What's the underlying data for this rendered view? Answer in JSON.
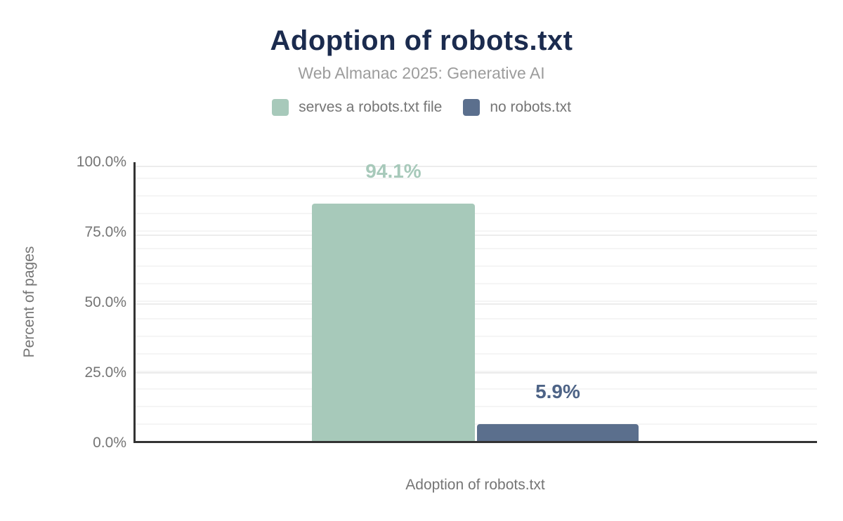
{
  "figure": {
    "title": "Adoption of robots.txt",
    "subtitle": "Web Almanac 2025: Generative AI"
  },
  "chart_data": {
    "type": "bar",
    "title": "Adoption of robots.txt",
    "subtitle": "Web Almanac 2025: Generative AI",
    "categories": [
      "serves a robots.txt file",
      "no robots.txt"
    ],
    "values": [
      94.1,
      5.9
    ],
    "value_labels": [
      "94.1%",
      "5.9%"
    ],
    "series_colors": [
      "#a7c9ba",
      "#5b6f8d"
    ],
    "value_label_colors": [
      "#a7c9ba",
      "#4d6386"
    ],
    "xlabel": "Adoption of robots.txt",
    "ylabel": "Percent of pages",
    "ylim": [
      0,
      100
    ],
    "yticks": [
      "0.0%",
      "25.0%",
      "50.0%",
      "75.0%",
      "100.0%"
    ],
    "grid": true,
    "legend_position": "top"
  },
  "legend": {
    "items": [
      {
        "label": "serves a robots.txt file",
        "color": "#a7c9ba"
      },
      {
        "label": "no robots.txt",
        "color": "#5b6f8d"
      }
    ]
  },
  "colors": {
    "title": "#1b2b4e",
    "subtitle": "#9c9c9c",
    "axis_text": "#757575",
    "axis_line": "#333333",
    "series_green": "#a7c9ba",
    "series_slate": "#5b6f8d",
    "value_label_slate": "#4d6386",
    "background": "#ffffff"
  }
}
